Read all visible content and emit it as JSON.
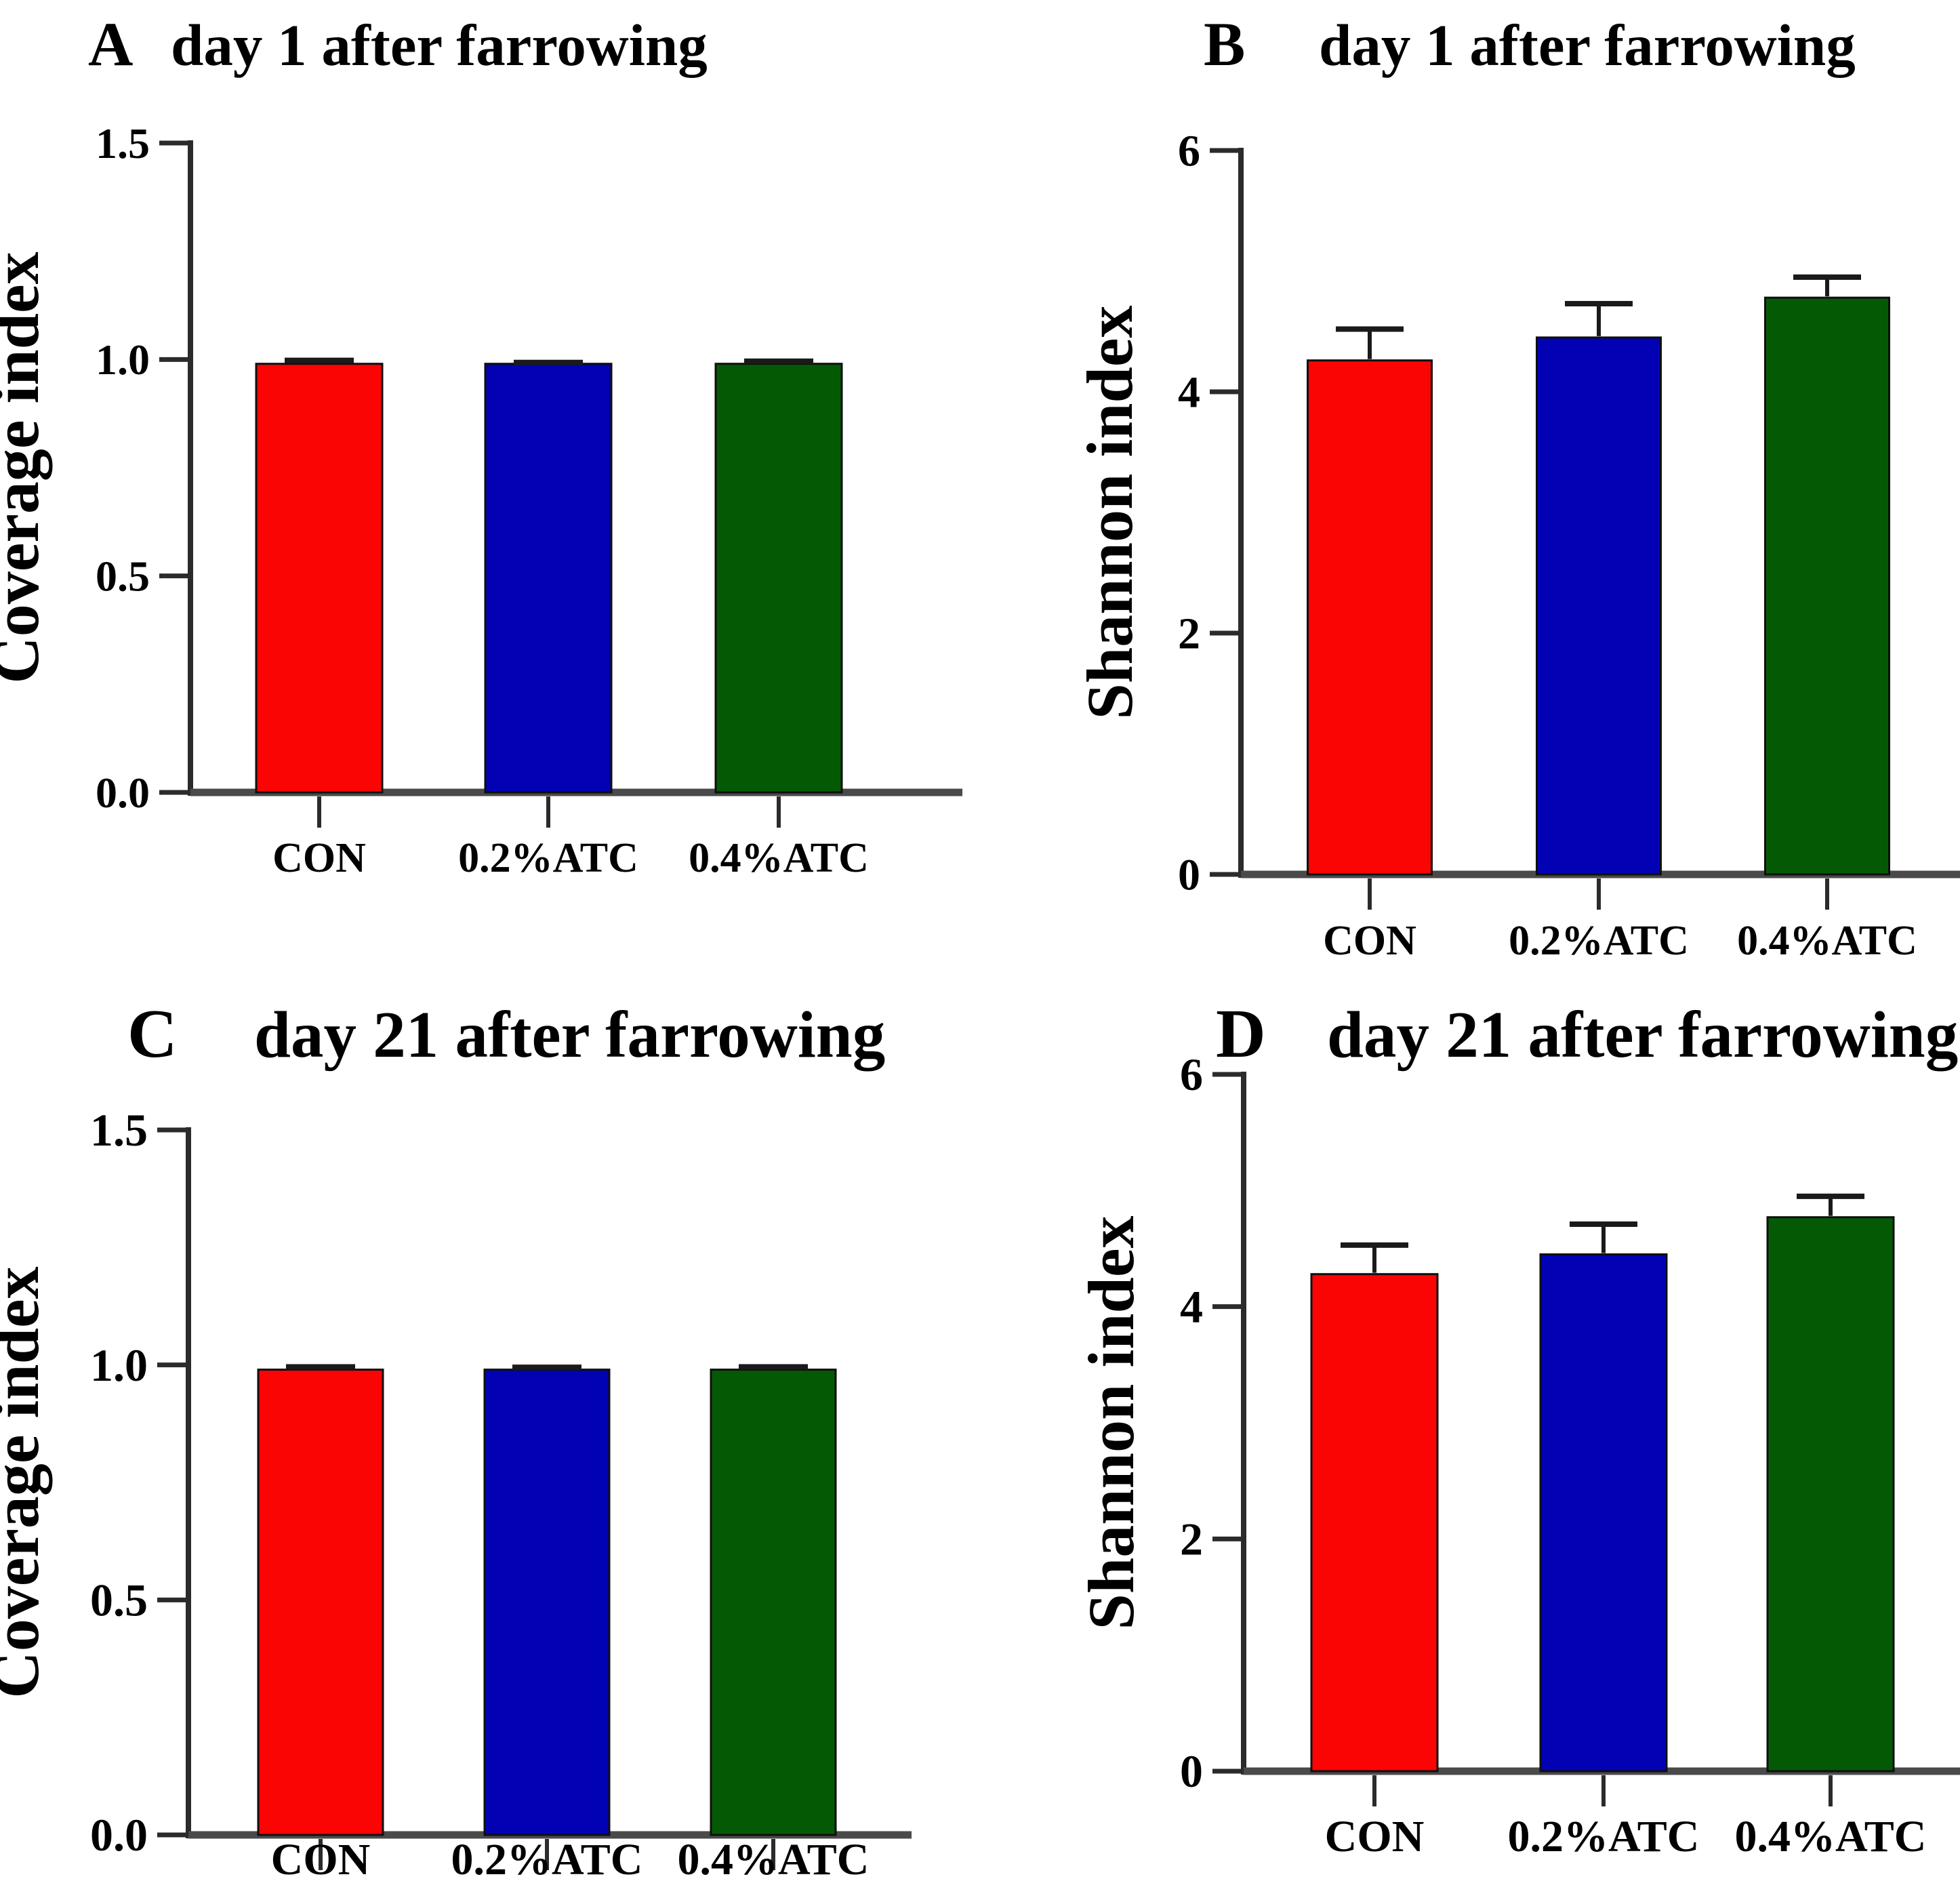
{
  "figure": {
    "background": "#ffffff",
    "description": "Four-panel bar figure: alpha diversity (Coverage index, Shannon index) at day 1 and day 21 after farrowing for CON, 0.2%ATC and 0.4%ATC groups"
  },
  "style": {
    "bar_red": "#fb0404",
    "bar_blue": "#0202b4",
    "bar_green": "#045a04",
    "axis_color": "#2b2b2b",
    "baseline_color": "#4a4a4a",
    "error_bar_color": "#1a1a1a",
    "text_color": "#000000"
  },
  "chart_data": [
    {
      "type": "bar",
      "panel": "A",
      "title": "day 1 after farrowing",
      "ylabel": "Coverage index",
      "xlabel": "",
      "categories": [
        "CON",
        "0.2%ATC",
        "0.4%ATC"
      ],
      "values": [
        0.99,
        0.99,
        0.99
      ],
      "errors": [
        0.008,
        0.003,
        0.006
      ],
      "ylim": [
        0,
        1.5
      ],
      "yticks": [
        0,
        0.5,
        1.0,
        1.5
      ],
      "ytick_labels": [
        "0.0",
        "0.5",
        "1.0",
        "1.5"
      ],
      "bar_colors": [
        "#fb0404",
        "#0202b4",
        "#045a04"
      ],
      "grid": false,
      "legend": "none"
    },
    {
      "type": "bar",
      "panel": "B",
      "title": "day 1 after farrowing",
      "ylabel": "Shannon index",
      "xlabel": "",
      "categories": [
        "CON",
        "0.2%ATC",
        "0.4%ATC"
      ],
      "values": [
        4.26,
        4.45,
        4.78
      ],
      "errors": [
        0.26,
        0.28,
        0.17
      ],
      "ylim": [
        0,
        6
      ],
      "yticks": [
        0,
        2,
        4,
        6
      ],
      "ytick_labels": [
        "0",
        "2",
        "4",
        "6"
      ],
      "bar_colors": [
        "#fb0404",
        "#0202b4",
        "#045a04"
      ],
      "grid": false,
      "legend": "none"
    },
    {
      "type": "bar",
      "panel": "C",
      "title": "day 21 after farrowing",
      "ylabel": "Coverage index",
      "xlabel": "",
      "categories": [
        "CON",
        "0.2%ATC",
        "0.4%ATC"
      ],
      "values": [
        0.99,
        0.99,
        0.99
      ],
      "errors": [
        0.006,
        0.005,
        0.006
      ],
      "ylim": [
        0,
        1.5
      ],
      "yticks": [
        0,
        0.5,
        1.0,
        1.5
      ],
      "ytick_labels": [
        "0.0",
        "0.5",
        "1.0",
        "1.5"
      ],
      "bar_colors": [
        "#fb0404",
        "#0202b4",
        "#045a04"
      ],
      "grid": false,
      "legend": "none"
    },
    {
      "type": "bar",
      "panel": "D",
      "title": "day 21 after farrowing",
      "ylabel": "Shannon index",
      "xlabel": "",
      "categories": [
        "CON",
        "0.2%ATC",
        "0.4%ATC"
      ],
      "values": [
        4.28,
        4.45,
        4.77
      ],
      "errors": [
        0.25,
        0.26,
        0.18
      ],
      "ylim": [
        0,
        6
      ],
      "yticks": [
        0,
        2,
        4,
        6
      ],
      "ytick_labels": [
        "0",
        "2",
        "4",
        "6"
      ],
      "bar_colors": [
        "#fb0404",
        "#0202b4",
        "#045a04"
      ],
      "grid": false,
      "legend": "none"
    }
  ]
}
